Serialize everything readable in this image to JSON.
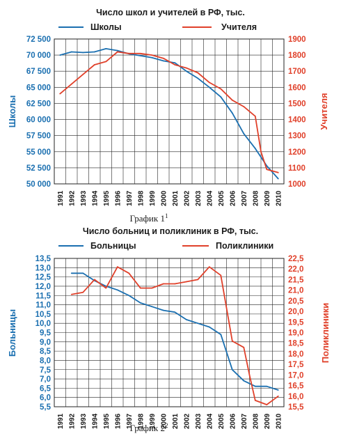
{
  "chart_data": [
    {
      "type": "line",
      "title": "Число школ и учителей в РФ, тыс.",
      "caption": "График 1",
      "caption_sup": "1",
      "x": [
        1991,
        1992,
        1993,
        1994,
        1995,
        1996,
        1997,
        1998,
        1999,
        2000,
        2001,
        2002,
        2003,
        2004,
        2005,
        2006,
        2007,
        2008,
        2009,
        2010
      ],
      "ylabel_left": "Школы",
      "ylabel_right": "Учителя",
      "ylim_left": [
        50000,
        72500
      ],
      "ylim_right": [
        1000,
        1900
      ],
      "yticks_left": [
        "72 500",
        "70 000",
        "67 500",
        "65 000",
        "62 500",
        "60 000",
        "57 500",
        "55 000",
        "52 500",
        "50 000"
      ],
      "yticks_right": [
        "1900",
        "1800",
        "1700",
        "1600",
        "1500",
        "1400",
        "1300",
        "1200",
        "1100",
        "1000"
      ],
      "series": [
        {
          "name": "Школы",
          "axis": "left",
          "color": "#1a6fb0",
          "points": [
            [
              1991,
              70000
            ],
            [
              1992,
              70500
            ],
            [
              1993,
              70400
            ],
            [
              1994,
              70500
            ],
            [
              1995,
              71000
            ],
            [
              1996,
              70700
            ],
            [
              1997,
              70200
            ],
            [
              1998,
              69900
            ],
            [
              1999,
              69600
            ],
            [
              2000,
              69100
            ],
            [
              2001,
              68800
            ],
            [
              2002,
              67500
            ],
            [
              2003,
              66400
            ],
            [
              2004,
              65000
            ],
            [
              2005,
              63500
            ],
            [
              2006,
              61000
            ],
            [
              2007,
              57800
            ],
            [
              2008,
              55500
            ],
            [
              2009,
              52800
            ],
            [
              2010,
              50800
            ]
          ]
        },
        {
          "name": "Учителя",
          "axis": "right",
          "color": "#e0402a",
          "points": [
            [
              1991,
              1560
            ],
            [
              1992,
              1620
            ],
            [
              1993,
              1680
            ],
            [
              1994,
              1740
            ],
            [
              1995,
              1760
            ],
            [
              1996,
              1820
            ],
            [
              1997,
              1810
            ],
            [
              1998,
              1810
            ],
            [
              1999,
              1800
            ],
            [
              2000,
              1780
            ],
            [
              2001,
              1740
            ],
            [
              2002,
              1720
            ],
            [
              2003,
              1690
            ],
            [
              2004,
              1630
            ],
            [
              2005,
              1590
            ],
            [
              2006,
              1520
            ],
            [
              2007,
              1480
            ],
            [
              2008,
              1420
            ],
            [
              2008.5,
              1200
            ],
            [
              2009,
              1090
            ],
            [
              2010,
              1070
            ]
          ]
        }
      ]
    },
    {
      "type": "line",
      "title": "Число больниц и поликлиник в РФ, тыс.",
      "caption": "График 2",
      "caption_sup": "2",
      "x": [
        1991,
        1992,
        1993,
        1994,
        1995,
        1996,
        1997,
        1998,
        1999,
        2000,
        2001,
        2002,
        2003,
        2004,
        2005,
        2006,
        2007,
        2008,
        2009,
        2010
      ],
      "ylabel_left": "Больницы",
      "ylabel_right": "Поликлиники",
      "ylim_left": [
        5.5,
        13.5
      ],
      "ylim_right": [
        15.5,
        22.5
      ],
      "yticks_left": [
        "13,5",
        "13,0",
        "12,5",
        "12,0",
        "11,5",
        "11,0",
        "10,5",
        "10,0",
        "9,5",
        "9,0",
        "8,5",
        "8,0",
        "7,5",
        "7,0",
        "6,5",
        "6,0",
        "5,5"
      ],
      "yticks_right": [
        "22,5",
        "22,0",
        "21,5",
        "21,0",
        "20,5",
        "20,0",
        "19,5",
        "19,0",
        "18,5",
        "18,0",
        "17,5",
        "17,0",
        "16,5",
        "16,0",
        "15,5"
      ],
      "series": [
        {
          "name": "Больницы",
          "axis": "left",
          "color": "#1a6fb0",
          "points": [
            [
              1992,
              12.7
            ],
            [
              1993,
              12.7
            ],
            [
              1994,
              12.3
            ],
            [
              1995,
              12.0
            ],
            [
              1996,
              11.8
            ],
            [
              1997,
              11.5
            ],
            [
              1998,
              11.1
            ],
            [
              1999,
              10.9
            ],
            [
              2000,
              10.7
            ],
            [
              2001,
              10.6
            ],
            [
              2002,
              10.2
            ],
            [
              2003,
              10.0
            ],
            [
              2004,
              9.8
            ],
            [
              2005,
              9.4
            ],
            [
              2006,
              7.5
            ],
            [
              2007,
              6.9
            ],
            [
              2008,
              6.6
            ],
            [
              2009,
              6.6
            ],
            [
              2010,
              6.4
            ]
          ]
        },
        {
          "name": "Поликлиники",
          "axis": "right",
          "color": "#e0402a",
          "points": [
            [
              1992,
              20.8
            ],
            [
              1993,
              20.9
            ],
            [
              1994,
              21.5
            ],
            [
              1995,
              21.1
            ],
            [
              1996,
              22.1
            ],
            [
              1997,
              21.8
            ],
            [
              1998,
              21.1
            ],
            [
              1999,
              21.1
            ],
            [
              2000,
              21.3
            ],
            [
              2001,
              21.3
            ],
            [
              2002,
              21.4
            ],
            [
              2003,
              21.5
            ],
            [
              2004,
              22.1
            ],
            [
              2005,
              21.7
            ],
            [
              2006,
              18.6
            ],
            [
              2007,
              18.3
            ],
            [
              2007.5,
              17.0
            ],
            [
              2008,
              15.8
            ],
            [
              2009,
              15.6
            ],
            [
              2010,
              16.0
            ]
          ]
        }
      ]
    }
  ]
}
